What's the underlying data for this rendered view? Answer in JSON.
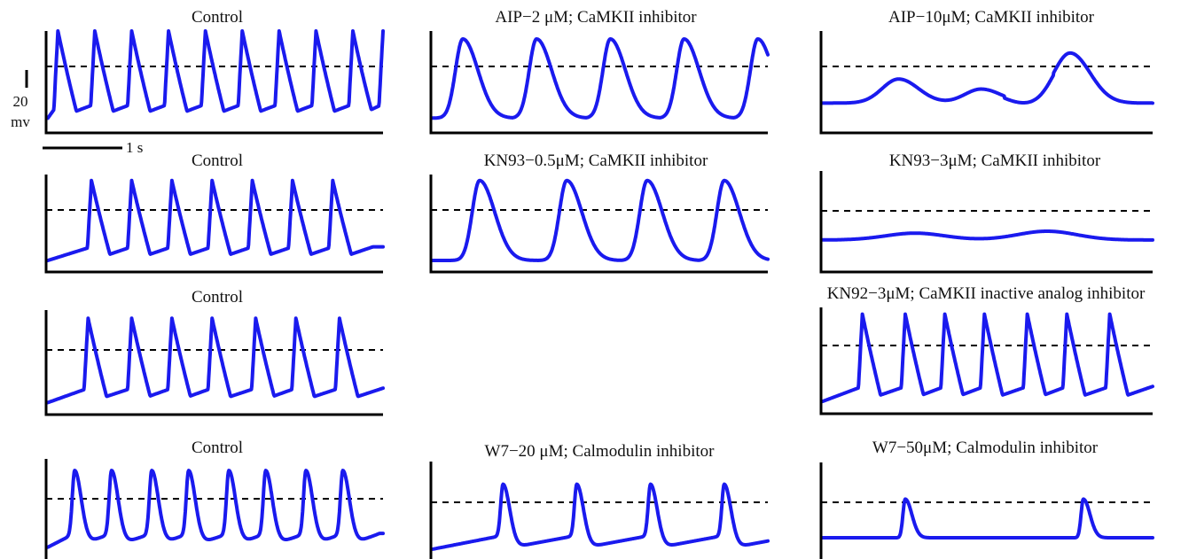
{
  "scale_bar": {
    "voltage_value": "20",
    "voltage_unit": "mv",
    "time_label": "1 s"
  },
  "colors": {
    "trace": "#1a1aee",
    "axis": "#000000",
    "reference": "#000000"
  },
  "chart_data": [
    {
      "id": "r1c1",
      "type": "line",
      "title": "Control",
      "beats": [
        0.03,
        0.14,
        0.25,
        0.36,
        0.47,
        0.58,
        0.69,
        0.8,
        0.91,
        1.0
      ],
      "peak": 1.0,
      "trough": 0.13,
      "shape": "sharp"
    },
    {
      "id": "r1c2",
      "type": "line",
      "title": "AIP−2 μM; CaMKII inhibitor",
      "beats": [
        0.09,
        0.31,
        0.53,
        0.75,
        0.97
      ],
      "peak": 0.92,
      "trough": 0.13,
      "shape": "round"
    },
    {
      "id": "r1c3",
      "type": "line",
      "title": "AIP−10μM; CaMKII inhibitor",
      "beats": [
        0.23,
        0.48,
        0.75
      ],
      "peak_levels": [
        0.52,
        0.42,
        0.78
      ],
      "baseline": 0.28,
      "shape": "broad"
    },
    {
      "id": "r2c1",
      "type": "line",
      "title": "Control",
      "beats": [
        0.13,
        0.25,
        0.37,
        0.49,
        0.61,
        0.73,
        0.85
      ],
      "peak": 0.92,
      "trough": 0.1,
      "shape": "sharp"
    },
    {
      "id": "r2c2",
      "type": "line",
      "title": "KN93−0.5μM; CaMKII inhibitor",
      "beats": [
        0.14,
        0.4,
        0.64,
        0.87
      ],
      "peak": 0.92,
      "trough": 0.1,
      "shape": "round"
    },
    {
      "id": "r2c3",
      "type": "line",
      "title": "KN93−3μM; CaMKII inhibitor",
      "beats": [
        0.28,
        0.68
      ],
      "peak_levels": [
        0.38,
        0.4
      ],
      "baseline": 0.31,
      "shape": "flat"
    },
    {
      "id": "r3c1",
      "type": "line",
      "title": "Control",
      "beats": [
        0.12,
        0.25,
        0.37,
        0.49,
        0.62,
        0.74,
        0.87
      ],
      "peak": 0.92,
      "trough": 0.1,
      "shape": "sharp"
    },
    {
      "id": "r3c3",
      "type": "line",
      "title": "KN92−3μM; CaMKII inactive analog inhibitor",
      "beats": [
        0.12,
        0.25,
        0.37,
        0.49,
        0.62,
        0.74,
        0.87
      ],
      "peak": 0.92,
      "trough": 0.1,
      "shape": "sharp"
    },
    {
      "id": "r4c1",
      "type": "line",
      "title": "Control",
      "beats": [
        0.08,
        0.19,
        0.31,
        0.42,
        0.54,
        0.65,
        0.77,
        0.88
      ],
      "peak": 0.9,
      "trough": 0.12,
      "shape": "spike"
    },
    {
      "id": "r4c2",
      "type": "line",
      "title": "W7−20 μM; Calmodulin inhibitor",
      "beats": [
        0.21,
        0.43,
        0.65,
        0.87
      ],
      "peak": 0.76,
      "trough": 0.1,
      "shape": "spike"
    },
    {
      "id": "r4c3",
      "type": "line",
      "title": "W7−50μM; Calmodulin inhibitor",
      "beats": [
        0.25,
        0.79
      ],
      "peak_levels": [
        0.62,
        0.62
      ],
      "baseline": 0.22,
      "shape": "spike-flat"
    }
  ]
}
